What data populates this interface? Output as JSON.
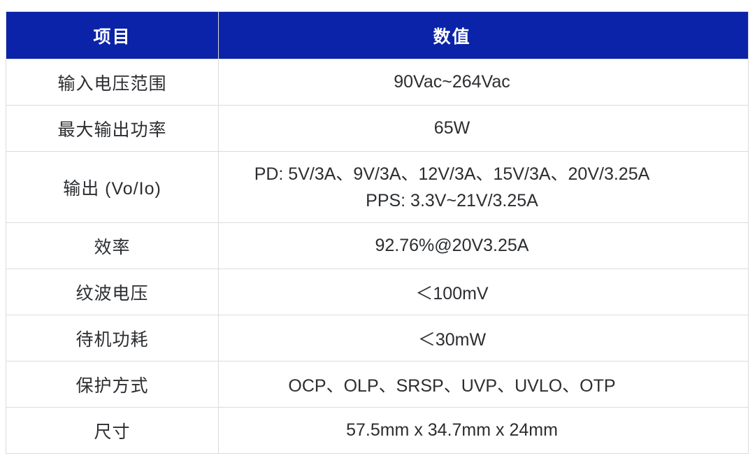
{
  "theme": {
    "header_bg": "#0a23a8",
    "header_text": "#ffffff",
    "body_bg": "#ffffff",
    "body_text": "#2b2d30",
    "border": "#dcdcdc"
  },
  "table": {
    "columns": {
      "item": "项目",
      "value": "数值"
    },
    "rows": [
      {
        "item": "输入电压范围",
        "value": "90Vac~264Vac"
      },
      {
        "item": "最大输出功率",
        "value": "65W"
      },
      {
        "item": "输出 (Vo/Io)",
        "value_line1": "PD: 5V/3A、9V/3A、12V/3A、15V/3A、20V/3.25A",
        "value_line2": "PPS: 3.3V~21V/3.25A"
      },
      {
        "item": "效率",
        "value": "92.76%@20V3.25A"
      },
      {
        "item": "纹波电压",
        "value": "＜100mV"
      },
      {
        "item": "待机功耗",
        "value": "＜30mW"
      },
      {
        "item": "保护方式",
        "value": "OCP、OLP、SRSP、UVP、UVLO、OTP"
      },
      {
        "item": "尺寸",
        "value": "57.5mm x 34.7mm x 24mm"
      }
    ]
  }
}
